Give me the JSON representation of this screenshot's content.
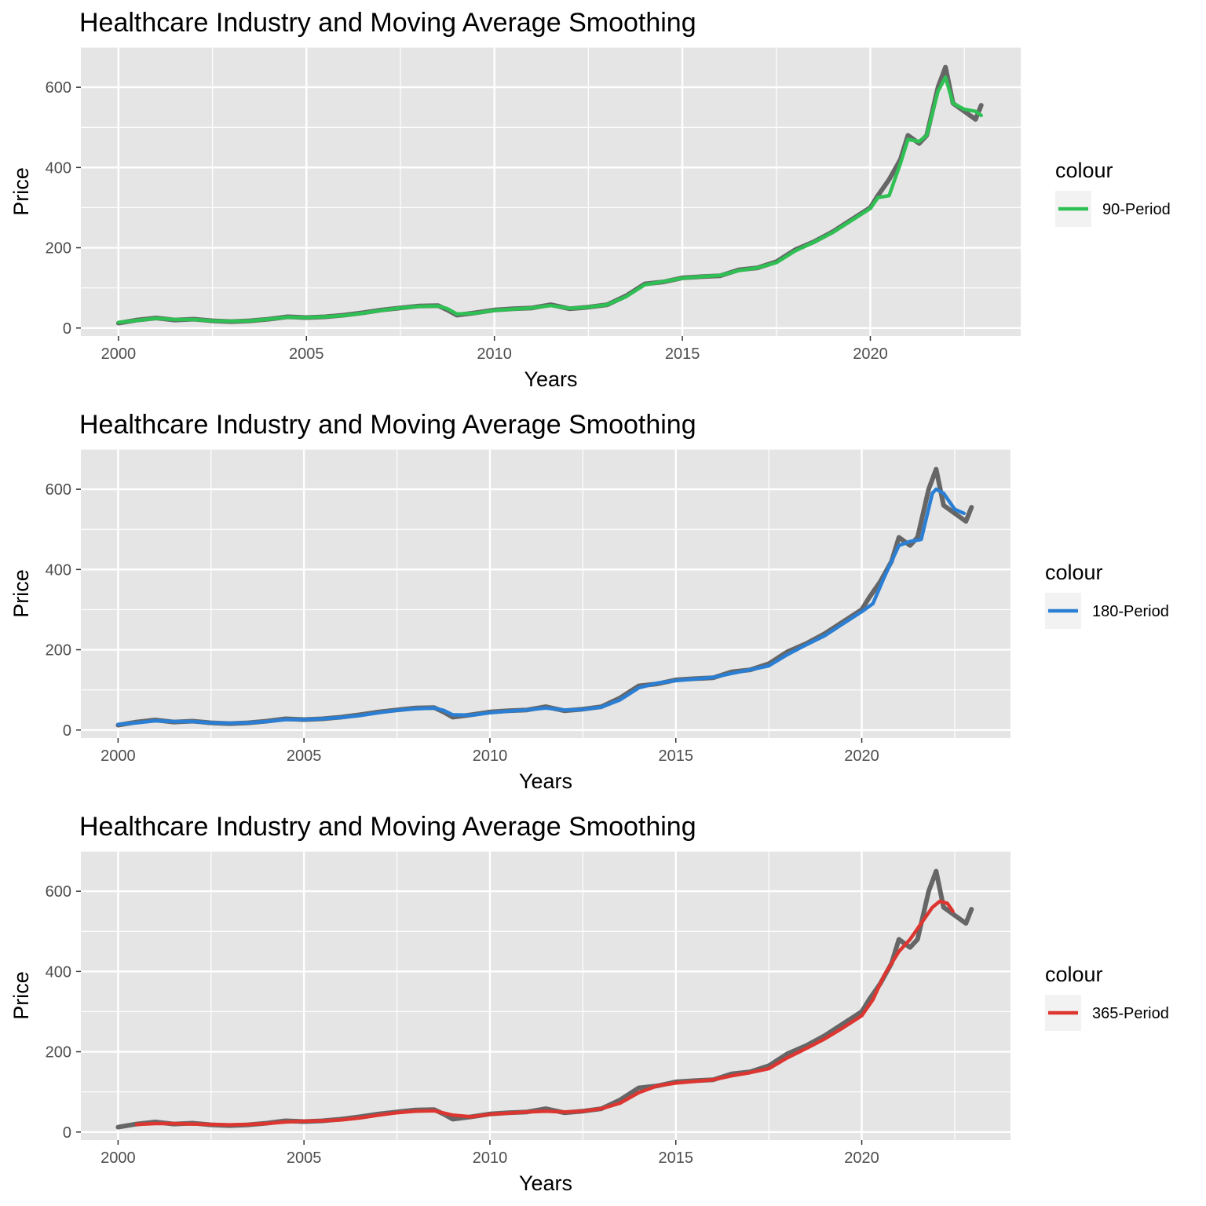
{
  "figure": {
    "background": "#ffffff",
    "panel_background": "#e5e5e5",
    "gridline_color": "#ffffff",
    "price_line_color": "#666666"
  },
  "chart_data": [
    {
      "type": "line",
      "title": "Healthcare Industry and Moving Average Smoothing",
      "xlabel": "Years",
      "ylabel": "Price",
      "xlim": [
        1999.0,
        2024.0
      ],
      "ylim": [
        -20,
        700
      ],
      "x_ticks": [
        2000,
        2005,
        2010,
        2015,
        2020
      ],
      "x_tick_labels": [
        "2000",
        "2005",
        "2010",
        "2015",
        "2020"
      ],
      "y_ticks": [
        0,
        200,
        400,
        600
      ],
      "y_tick_labels": [
        "0",
        "200",
        "400",
        "600"
      ],
      "grid": true,
      "legend": {
        "title": "colour",
        "position": "right"
      },
      "series": [
        {
          "role": "price",
          "color": "#666666",
          "x": [
            2000.0,
            2000.5,
            2001.0,
            2001.5,
            2002.0,
            2002.5,
            2003.0,
            2003.5,
            2004.0,
            2004.5,
            2005.0,
            2005.5,
            2006.0,
            2006.5,
            2007.0,
            2007.5,
            2008.0,
            2008.5,
            2008.75,
            2009.0,
            2009.5,
            2010.0,
            2010.5,
            2011.0,
            2011.5,
            2012.0,
            2012.5,
            2013.0,
            2013.5,
            2014.0,
            2014.5,
            2015.0,
            2015.5,
            2016.0,
            2016.5,
            2017.0,
            2017.5,
            2018.0,
            2018.5,
            2019.0,
            2019.5,
            2020.0,
            2020.2,
            2020.5,
            2020.8,
            2021.0,
            2021.3,
            2021.5,
            2021.8,
            2022.0,
            2022.2,
            2022.5,
            2022.8,
            2022.95
          ],
          "values": [
            12,
            20,
            25,
            20,
            22,
            18,
            16,
            18,
            22,
            28,
            26,
            28,
            32,
            38,
            45,
            50,
            55,
            56,
            45,
            32,
            38,
            45,
            48,
            50,
            58,
            48,
            52,
            58,
            80,
            110,
            115,
            125,
            128,
            130,
            145,
            150,
            165,
            195,
            215,
            240,
            270,
            300,
            330,
            370,
            420,
            480,
            460,
            480,
            600,
            650,
            560,
            540,
            520,
            555
          ]
        },
        {
          "name": "90-Period",
          "color": "#2fc054",
          "x": [
            2000.0,
            2000.5,
            2001.0,
            2001.5,
            2002.0,
            2002.5,
            2003.0,
            2003.5,
            2004.0,
            2004.5,
            2005.0,
            2005.5,
            2006.0,
            2006.5,
            2007.0,
            2007.5,
            2008.0,
            2008.5,
            2008.75,
            2009.0,
            2009.5,
            2010.0,
            2010.5,
            2011.0,
            2011.5,
            2012.0,
            2012.5,
            2013.0,
            2013.5,
            2014.0,
            2014.5,
            2015.0,
            2015.5,
            2016.0,
            2016.5,
            2017.0,
            2017.5,
            2018.0,
            2018.5,
            2019.0,
            2019.5,
            2020.0,
            2020.2,
            2020.5,
            2020.8,
            2021.0,
            2021.3,
            2021.5,
            2021.8,
            2022.0,
            2022.2,
            2022.5,
            2022.8,
            2022.95
          ],
          "values": [
            14,
            19,
            24,
            21,
            21,
            18,
            17,
            18,
            22,
            27,
            26,
            28,
            31,
            37,
            44,
            50,
            54,
            55,
            48,
            35,
            37,
            44,
            47,
            50,
            56,
            49,
            52,
            58,
            78,
            108,
            116,
            124,
            128,
            131,
            143,
            150,
            163,
            192,
            214,
            238,
            268,
            298,
            325,
            330,
            410,
            470,
            465,
            480,
            590,
            625,
            560,
            545,
            540,
            530
          ]
        }
      ]
    },
    {
      "type": "line",
      "title": "Healthcare Industry and Moving Average Smoothing",
      "xlabel": "Years",
      "ylabel": "Price",
      "xlim": [
        1999.0,
        2024.0
      ],
      "ylim": [
        -20,
        700
      ],
      "x_ticks": [
        2000,
        2005,
        2010,
        2015,
        2020
      ],
      "x_tick_labels": [
        "2000",
        "2005",
        "2010",
        "2015",
        "2020"
      ],
      "y_ticks": [
        0,
        200,
        400,
        600
      ],
      "y_tick_labels": [
        "0",
        "200",
        "400",
        "600"
      ],
      "grid": true,
      "legend": {
        "title": "colour",
        "position": "right"
      },
      "series": [
        {
          "role": "price",
          "color": "#666666",
          "x": [
            2000.0,
            2000.5,
            2001.0,
            2001.5,
            2002.0,
            2002.5,
            2003.0,
            2003.5,
            2004.0,
            2004.5,
            2005.0,
            2005.5,
            2006.0,
            2006.5,
            2007.0,
            2007.5,
            2008.0,
            2008.5,
            2008.75,
            2009.0,
            2009.5,
            2010.0,
            2010.5,
            2011.0,
            2011.5,
            2012.0,
            2012.5,
            2013.0,
            2013.5,
            2014.0,
            2014.5,
            2015.0,
            2015.5,
            2016.0,
            2016.5,
            2017.0,
            2017.5,
            2018.0,
            2018.5,
            2019.0,
            2019.5,
            2020.0,
            2020.2,
            2020.5,
            2020.8,
            2021.0,
            2021.3,
            2021.5,
            2021.8,
            2022.0,
            2022.2,
            2022.5,
            2022.8,
            2022.95
          ],
          "values": [
            12,
            20,
            25,
            20,
            22,
            18,
            16,
            18,
            22,
            28,
            26,
            28,
            32,
            38,
            45,
            50,
            55,
            56,
            45,
            32,
            38,
            45,
            48,
            50,
            58,
            48,
            52,
            58,
            80,
            110,
            115,
            125,
            128,
            130,
            145,
            150,
            165,
            195,
            215,
            240,
            270,
            300,
            330,
            370,
            420,
            480,
            460,
            480,
            600,
            650,
            560,
            540,
            520,
            555
          ]
        },
        {
          "name": "180-Period",
          "color": "#2a7fd4",
          "x": [
            2000.0,
            2000.5,
            2001.0,
            2001.5,
            2002.0,
            2002.5,
            2003.0,
            2003.5,
            2004.0,
            2004.5,
            2005.0,
            2005.5,
            2006.0,
            2006.5,
            2007.0,
            2007.5,
            2008.0,
            2008.5,
            2008.75,
            2009.0,
            2009.5,
            2010.0,
            2010.5,
            2011.0,
            2011.5,
            2012.0,
            2012.5,
            2013.0,
            2013.5,
            2014.0,
            2014.5,
            2015.0,
            2015.5,
            2016.0,
            2016.5,
            2017.0,
            2017.5,
            2018.0,
            2018.5,
            2019.0,
            2019.5,
            2020.0,
            2020.3,
            2020.6,
            2021.0,
            2021.3,
            2021.6,
            2021.9,
            2022.0,
            2022.2,
            2022.5,
            2022.75
          ],
          "values": [
            14,
            18,
            23,
            21,
            21,
            18,
            17,
            18,
            21,
            26,
            26,
            28,
            31,
            36,
            43,
            49,
            53,
            55,
            49,
            38,
            37,
            43,
            47,
            50,
            55,
            50,
            51,
            57,
            75,
            105,
            117,
            123,
            127,
            131,
            141,
            150,
            160,
            188,
            212,
            235,
            265,
            295,
            315,
            380,
            460,
            470,
            475,
            590,
            600,
            590,
            550,
            540
          ]
        }
      ]
    },
    {
      "type": "line",
      "title": "Healthcare Industry and Moving Average Smoothing",
      "xlabel": "Years",
      "ylabel": "Price",
      "xlim": [
        1999.0,
        2024.0
      ],
      "ylim": [
        -20,
        700
      ],
      "x_ticks": [
        2000,
        2005,
        2010,
        2015,
        2020
      ],
      "x_tick_labels": [
        "2000",
        "2005",
        "2010",
        "2015",
        "2020"
      ],
      "y_ticks": [
        0,
        200,
        400,
        600
      ],
      "y_tick_labels": [
        "0",
        "200",
        "400",
        "600"
      ],
      "grid": true,
      "legend": {
        "title": "colour",
        "position": "right"
      },
      "series": [
        {
          "role": "price",
          "color": "#666666",
          "x": [
            2000.0,
            2000.5,
            2001.0,
            2001.5,
            2002.0,
            2002.5,
            2003.0,
            2003.5,
            2004.0,
            2004.5,
            2005.0,
            2005.5,
            2006.0,
            2006.5,
            2007.0,
            2007.5,
            2008.0,
            2008.5,
            2008.75,
            2009.0,
            2009.5,
            2010.0,
            2010.5,
            2011.0,
            2011.5,
            2012.0,
            2012.5,
            2013.0,
            2013.5,
            2014.0,
            2014.5,
            2015.0,
            2015.5,
            2016.0,
            2016.5,
            2017.0,
            2017.5,
            2018.0,
            2018.5,
            2019.0,
            2019.5,
            2020.0,
            2020.2,
            2020.5,
            2020.8,
            2021.0,
            2021.3,
            2021.5,
            2021.8,
            2022.0,
            2022.2,
            2022.5,
            2022.8,
            2022.95
          ],
          "values": [
            12,
            20,
            25,
            20,
            22,
            18,
            16,
            18,
            22,
            28,
            26,
            28,
            32,
            38,
            45,
            50,
            55,
            56,
            45,
            32,
            38,
            45,
            48,
            50,
            58,
            48,
            52,
            58,
            80,
            110,
            115,
            125,
            128,
            130,
            145,
            150,
            165,
            195,
            215,
            240,
            270,
            300,
            330,
            370,
            420,
            480,
            460,
            480,
            600,
            650,
            560,
            540,
            520,
            555
          ]
        },
        {
          "name": "365-Period",
          "color": "#dd3530",
          "x": [
            2000.5,
            2001.0,
            2001.5,
            2002.0,
            2002.5,
            2003.0,
            2003.5,
            2004.0,
            2004.5,
            2005.0,
            2005.5,
            2006.0,
            2006.5,
            2007.0,
            2007.5,
            2008.0,
            2008.5,
            2009.0,
            2009.5,
            2010.0,
            2010.5,
            2011.0,
            2011.5,
            2012.0,
            2012.5,
            2013.0,
            2013.5,
            2014.0,
            2014.5,
            2015.0,
            2015.5,
            2016.0,
            2016.5,
            2017.0,
            2017.5,
            2018.0,
            2018.5,
            2019.0,
            2019.5,
            2020.0,
            2020.3,
            2020.6,
            2021.0,
            2021.3,
            2021.6,
            2021.9,
            2022.1,
            2022.3,
            2022.45
          ],
          "values": [
            19,
            21,
            21,
            20,
            19,
            18,
            19,
            21,
            25,
            27,
            28,
            30,
            35,
            42,
            48,
            52,
            53,
            42,
            38,
            44,
            47,
            50,
            52,
            50,
            52,
            58,
            72,
            98,
            115,
            122,
            126,
            130,
            140,
            148,
            158,
            185,
            208,
            232,
            260,
            290,
            330,
            390,
            450,
            480,
            520,
            560,
            575,
            570,
            550
          ]
        }
      ]
    }
  ]
}
